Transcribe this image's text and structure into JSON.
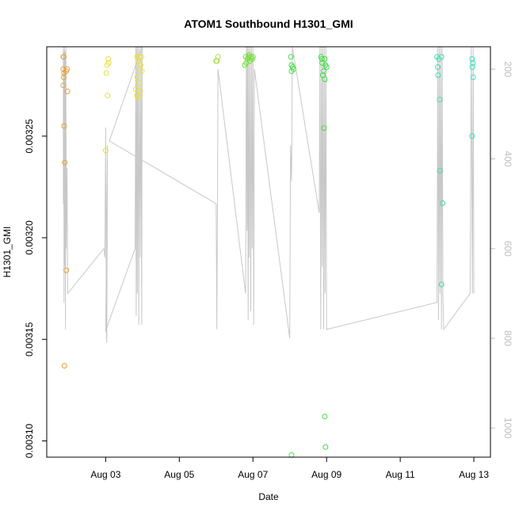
{
  "chart_data": {
    "type": "scatter",
    "title": "ATOM1 Southbound H1301_GMI",
    "xlabel": "Date",
    "ylabel": "H1301_GMI",
    "x_unit": "days (Aug, day-of-month)",
    "xlim": [
      1.4,
      13.45
    ],
    "ylim": [
      0.003092,
      0.003294
    ],
    "x_ticks": [
      {
        "value": 3,
        "label": "Aug 03"
      },
      {
        "value": 5,
        "label": "Aug 05"
      },
      {
        "value": 7,
        "label": "Aug 07"
      },
      {
        "value": 9,
        "label": "Aug 09"
      },
      {
        "value": 11,
        "label": "Aug 11"
      },
      {
        "value": 13,
        "label": "Aug 13"
      }
    ],
    "y_ticks": [
      {
        "value": 0.0031,
        "label": "0.00310"
      },
      {
        "value": 0.00315,
        "label": "0.00315"
      },
      {
        "value": 0.0032,
        "label": "0.00320"
      },
      {
        "value": 0.00325,
        "label": "0.00325"
      }
    ],
    "y2_ticks": [
      {
        "value": 200,
        "label": "200"
      },
      {
        "value": 400,
        "label": "400"
      },
      {
        "value": 600,
        "label": "600"
      },
      {
        "value": 800,
        "label": "800"
      },
      {
        "value": 1000,
        "label": "1000"
      }
    ],
    "y2lim": [
      1065,
      150
    ],
    "grid": false,
    "points": [
      {
        "x": 1.85,
        "y": 0.003289,
        "color": "#e8a03a"
      },
      {
        "x": 1.86,
        "y": 0.003289,
        "color": "#e8a03a"
      },
      {
        "x": 1.85,
        "y": 0.003283,
        "color": "#e8a03a"
      },
      {
        "x": 1.87,
        "y": 0.003281,
        "color": "#e8a03a"
      },
      {
        "x": 1.95,
        "y": 0.003283,
        "color": "#e8a03a"
      },
      {
        "x": 1.93,
        "y": 0.003282,
        "color": "#e8a03a"
      },
      {
        "x": 1.86,
        "y": 0.003279,
        "color": "#e8a03a"
      },
      {
        "x": 1.85,
        "y": 0.003275,
        "color": "#e8a03a"
      },
      {
        "x": 1.96,
        "y": 0.003272,
        "color": "#e8a03a"
      },
      {
        "x": 1.87,
        "y": 0.003255,
        "color": "#e8a03a"
      },
      {
        "x": 1.89,
        "y": 0.003237,
        "color": "#e8a03a"
      },
      {
        "x": 1.93,
        "y": 0.003184,
        "color": "#e8a03a"
      },
      {
        "x": 1.88,
        "y": 0.003137,
        "color": "#e8a03a"
      },
      {
        "x": 3.07,
        "y": 0.003288,
        "color": "#e8e040"
      },
      {
        "x": 3.08,
        "y": 0.003286,
        "color": "#e8e040"
      },
      {
        "x": 3.04,
        "y": 0.003285,
        "color": "#e8e040"
      },
      {
        "x": 3.02,
        "y": 0.003281,
        "color": "#e8e040"
      },
      {
        "x": 3.05,
        "y": 0.00327,
        "color": "#e8e040"
      },
      {
        "x": 3.0,
        "y": 0.003243,
        "color": "#e8e040"
      },
      {
        "x": 3.85,
        "y": 0.003289,
        "color": "#e8e040"
      },
      {
        "x": 3.9,
        "y": 0.003289,
        "color": "#e8e040"
      },
      {
        "x": 3.97,
        "y": 0.003289,
        "color": "#e8e040"
      },
      {
        "x": 3.88,
        "y": 0.003287,
        "color": "#e8e040"
      },
      {
        "x": 3.95,
        "y": 0.003285,
        "color": "#e8e040"
      },
      {
        "x": 3.92,
        "y": 0.003283,
        "color": "#e8e040"
      },
      {
        "x": 3.98,
        "y": 0.003282,
        "color": "#e8e040"
      },
      {
        "x": 3.86,
        "y": 0.003279,
        "color": "#e8e040"
      },
      {
        "x": 3.9,
        "y": 0.003276,
        "color": "#e8e040"
      },
      {
        "x": 3.82,
        "y": 0.003273,
        "color": "#e8e040"
      },
      {
        "x": 3.94,
        "y": 0.003272,
        "color": "#e8e040"
      },
      {
        "x": 3.85,
        "y": 0.00327,
        "color": "#e8e040"
      },
      {
        "x": 3.9,
        "y": 0.003269,
        "color": "#e8e040"
      },
      {
        "x": 6.0,
        "y": 0.003287,
        "color": "#a8e040"
      },
      {
        "x": 6.02,
        "y": 0.003287,
        "color": "#a8e040"
      },
      {
        "x": 6.05,
        "y": 0.003289,
        "color": "#a8e040"
      },
      {
        "x": 6.8,
        "y": 0.003289,
        "color": "#70e038"
      },
      {
        "x": 6.85,
        "y": 0.003288,
        "color": "#70e038"
      },
      {
        "x": 6.88,
        "y": 0.003289,
        "color": "#70e038"
      },
      {
        "x": 6.92,
        "y": 0.003287,
        "color": "#70e038"
      },
      {
        "x": 6.95,
        "y": 0.003289,
        "color": "#70e038"
      },
      {
        "x": 6.98,
        "y": 0.003288,
        "color": "#70e038"
      },
      {
        "x": 7.0,
        "y": 0.003289,
        "color": "#70e038"
      },
      {
        "x": 6.82,
        "y": 0.003286,
        "color": "#70e038"
      },
      {
        "x": 6.78,
        "y": 0.003285,
        "color": "#70e038"
      },
      {
        "x": 6.9,
        "y": 0.00329,
        "color": "#70e038"
      },
      {
        "x": 8.03,
        "y": 0.003289,
        "color": "#40e040"
      },
      {
        "x": 8.05,
        "y": 0.003285,
        "color": "#40e040"
      },
      {
        "x": 8.08,
        "y": 0.003284,
        "color": "#40e040"
      },
      {
        "x": 8.1,
        "y": 0.003283,
        "color": "#40e040"
      },
      {
        "x": 8.05,
        "y": 0.003282,
        "color": "#40e040"
      },
      {
        "x": 8.05,
        "y": 0.003093,
        "color": "#40e040"
      },
      {
        "x": 8.85,
        "y": 0.003289,
        "color": "#40e040"
      },
      {
        "x": 8.87,
        "y": 0.003288,
        "color": "#40e040"
      },
      {
        "x": 8.95,
        "y": 0.003288,
        "color": "#40e040"
      },
      {
        "x": 8.88,
        "y": 0.003286,
        "color": "#40e040"
      },
      {
        "x": 8.97,
        "y": 0.003285,
        "color": "#40e040"
      },
      {
        "x": 9.0,
        "y": 0.003284,
        "color": "#40e040"
      },
      {
        "x": 8.92,
        "y": 0.003282,
        "color": "#40e040"
      },
      {
        "x": 8.9,
        "y": 0.00328,
        "color": "#40e040"
      },
      {
        "x": 8.95,
        "y": 0.003278,
        "color": "#40e040"
      },
      {
        "x": 8.93,
        "y": 0.003254,
        "color": "#40e040"
      },
      {
        "x": 8.95,
        "y": 0.003112,
        "color": "#40e040"
      },
      {
        "x": 8.97,
        "y": 0.003097,
        "color": "#40e040"
      },
      {
        "x": 12.0,
        "y": 0.003289,
        "color": "#40e0a8"
      },
      {
        "x": 12.05,
        "y": 0.003288,
        "color": "#40e0a8"
      },
      {
        "x": 12.12,
        "y": 0.003289,
        "color": "#40e0a8"
      },
      {
        "x": 12.02,
        "y": 0.003284,
        "color": "#40e0a8"
      },
      {
        "x": 12.03,
        "y": 0.00328,
        "color": "#40e0a8"
      },
      {
        "x": 12.07,
        "y": 0.003268,
        "color": "#40e0a8"
      },
      {
        "x": 12.08,
        "y": 0.003233,
        "color": "#40e0a8"
      },
      {
        "x": 12.15,
        "y": 0.003217,
        "color": "#40e0a8"
      },
      {
        "x": 12.12,
        "y": 0.003177,
        "color": "#40e0a8"
      },
      {
        "x": 12.95,
        "y": 0.003288,
        "color": "#40e0c0"
      },
      {
        "x": 12.97,
        "y": 0.003286,
        "color": "#40e0c0"
      },
      {
        "x": 12.96,
        "y": 0.003284,
        "color": "#40e0c0"
      },
      {
        "x": 12.98,
        "y": 0.003279,
        "color": "#40e0c0"
      },
      {
        "x": 12.95,
        "y": 0.00325,
        "color": "#40e0c0"
      }
    ],
    "depth_track": [
      [
        1.85,
        150
      ],
      [
        1.85,
        500
      ],
      [
        1.86,
        160
      ],
      [
        1.87,
        720
      ],
      [
        1.88,
        150
      ],
      [
        1.89,
        640
      ],
      [
        1.9,
        160
      ],
      [
        1.91,
        780
      ],
      [
        1.92,
        150
      ],
      [
        1.93,
        600
      ],
      [
        1.95,
        420
      ],
      [
        1.97,
        700
      ],
      [
        2.95,
        600
      ],
      [
        2.98,
        620
      ],
      [
        3.0,
        330
      ],
      [
        3.02,
        790
      ],
      [
        3.03,
        810
      ],
      [
        3.05,
        370
      ],
      [
        3.0,
        785
      ],
      [
        3.1,
        760
      ],
      [
        3.8,
        600
      ],
      [
        3.82,
        150
      ],
      [
        3.83,
        750
      ],
      [
        3.85,
        150
      ],
      [
        3.86,
        700
      ],
      [
        3.88,
        150
      ],
      [
        3.9,
        770
      ],
      [
        3.92,
        150
      ],
      [
        3.94,
        620
      ],
      [
        3.96,
        150
      ],
      [
        3.98,
        770
      ],
      [
        3.99,
        150
      ],
      [
        3.1,
        360
      ],
      [
        6.0,
        500
      ],
      [
        6.02,
        780
      ],
      [
        6.04,
        450
      ],
      [
        6.05,
        200
      ],
      [
        6.8,
        700
      ],
      [
        6.82,
        150
      ],
      [
        6.84,
        560
      ],
      [
        6.85,
        150
      ],
      [
        6.87,
        760
      ],
      [
        6.88,
        150
      ],
      [
        6.9,
        620
      ],
      [
        6.92,
        150
      ],
      [
        6.94,
        740
      ],
      [
        6.96,
        150
      ],
      [
        6.98,
        600
      ],
      [
        7.0,
        150
      ],
      [
        7.02,
        770
      ],
      [
        7.04,
        200
      ],
      [
        8.0,
        800
      ],
      [
        8.02,
        370
      ],
      [
        8.05,
        450
      ],
      [
        8.07,
        150
      ],
      [
        8.8,
        520
      ],
      [
        8.82,
        150
      ],
      [
        8.84,
        780
      ],
      [
        8.86,
        150
      ],
      [
        8.88,
        640
      ],
      [
        8.9,
        150
      ],
      [
        8.92,
        780
      ],
      [
        8.94,
        150
      ],
      [
        8.96,
        700
      ],
      [
        8.98,
        150
      ],
      [
        9.0,
        780
      ],
      [
        12.0,
        720
      ],
      [
        12.02,
        150
      ],
      [
        12.04,
        760
      ],
      [
        12.06,
        150
      ],
      [
        12.08,
        700
      ],
      [
        12.1,
        150
      ],
      [
        12.12,
        780
      ],
      [
        12.14,
        150
      ],
      [
        12.16,
        700
      ],
      [
        12.18,
        780
      ],
      [
        12.9,
        700
      ],
      [
        12.93,
        150
      ],
      [
        12.96,
        700
      ],
      [
        12.98,
        150
      ],
      [
        13.0,
        700
      ]
    ]
  }
}
